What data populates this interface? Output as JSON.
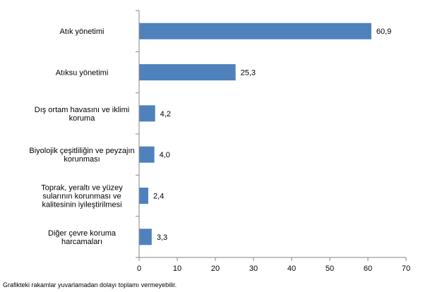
{
  "chart_data": {
    "type": "bar",
    "orientation": "horizontal",
    "categories": [
      [
        "Atık yönetimi"
      ],
      [
        "Atıksu yönetimi"
      ],
      [
        "Dış ortam havasını ve iklimi",
        "koruma"
      ],
      [
        "Biyolojik çeşitliliğin ve peyzajın",
        "korunması"
      ],
      [
        "Toprak, yeraltı ve yüzey",
        "sularının korunması ve",
        "kalitesinin iyileştirilmesi"
      ],
      [
        "Diğer çevre koruma",
        "harcamaları"
      ]
    ],
    "values": [
      60.9,
      25.3,
      4.2,
      4.0,
      2.4,
      3.3
    ],
    "value_labels": [
      "60,9",
      "25,3",
      "4,2",
      "4,0",
      "2,4",
      "3,3"
    ],
    "xlim": [
      0,
      70
    ],
    "xticks": [
      0,
      10,
      20,
      30,
      40,
      50,
      60,
      70
    ],
    "grid": false,
    "legend": "none",
    "bar_color": "#4F81BD",
    "axis_color": "#868686"
  },
  "footnote": "Grafikteki rakamlar yuvarlamadan dolayı toplamı vermeyebilir."
}
